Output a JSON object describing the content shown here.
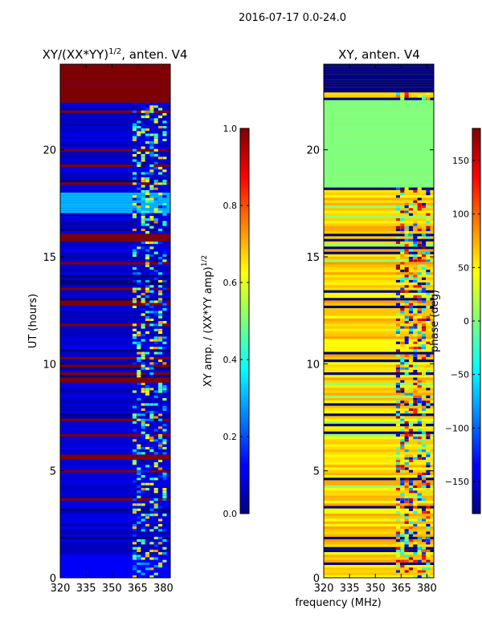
{
  "suptitle": "2016-07-17 0.0-24.0",
  "common_xlabel": "frequency (MHz)",
  "chart_data": [
    {
      "type": "heatmap",
      "title": "XY/(XX*YY)",
      "title_superscript": "1/2",
      "title_suffix": ", anten. V4",
      "xlabel": "",
      "ylabel": "UT (hours)",
      "xlim": [
        320,
        384
      ],
      "ylim": [
        0,
        24
      ],
      "xticks": [
        320,
        335,
        350,
        365,
        380
      ],
      "yticks": [
        0,
        5,
        10,
        15,
        20
      ],
      "colormap": "jet",
      "colorbar": {
        "label": "XY amp. / (XX*YY amp)",
        "label_superscript": "1/2",
        "range": [
          0,
          1
        ],
        "ticks": [
          0.0,
          0.2,
          0.4,
          0.6,
          0.8,
          1.0
        ],
        "tick_labels": [
          "0.0",
          "0.2",
          "0.4",
          "0.6",
          "0.8",
          "1.0"
        ]
      },
      "bands": [
        {
          "t0": 22.1,
          "t1": 24.0,
          "value": 1.0
        },
        {
          "t0": 17.0,
          "t1": 17.9,
          "value": 0.3
        },
        {
          "t0": 15.6,
          "t1": 16.0,
          "value": 1.0
        },
        {
          "t0": 9.1,
          "t1": 9.3,
          "value": 1.0
        },
        {
          "t0": 5.5,
          "t1": 5.65,
          "value": 1.0
        },
        {
          "t0": 0.0,
          "t1": 1.0,
          "value": 0.12
        }
      ],
      "background_value": 0.08,
      "noisy_freq_range": [
        362,
        381
      ]
    },
    {
      "type": "heatmap",
      "title": "XY, anten. V4",
      "xlabel": "",
      "ylabel": "",
      "xlim": [
        320,
        384
      ],
      "ylim": [
        0,
        24
      ],
      "xticks": [
        320,
        335,
        350,
        365,
        380
      ],
      "yticks": [
        0,
        5,
        10,
        15,
        20
      ],
      "colormap": "jet",
      "colorbar": {
        "label": "phase (deg)",
        "range": [
          -180,
          180
        ],
        "ticks": [
          -150,
          -100,
          -50,
          0,
          50,
          100,
          150
        ],
        "tick_labels": [
          "−150",
          "−100",
          "−50",
          "0",
          "50",
          "100",
          "150"
        ]
      },
      "bands": [
        {
          "t0": 22.6,
          "t1": 24.0,
          "value": -180
        },
        {
          "t0": 18.2,
          "t1": 22.3,
          "value": 0
        }
      ],
      "background_value": 60,
      "noisy_freq_range": [
        362,
        381
      ]
    }
  ],
  "colors": {
    "background": "#ffffff",
    "axis": "#000000"
  }
}
